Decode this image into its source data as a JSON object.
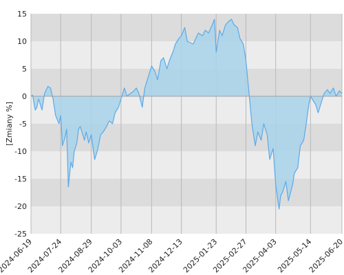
{
  "chart_data": {
    "type": "area",
    "title": "",
    "xlabel": "",
    "ylabel": "[Zmiany %]",
    "ylim": [
      -25,
      15
    ],
    "yticks": [
      15,
      10,
      5,
      0,
      -5,
      -10,
      -15,
      -20,
      -25
    ],
    "xlim": [
      "2024-06-19",
      "2025-06-20"
    ],
    "xticks": [
      "2024-06-19",
      "2024-07-24",
      "2024-08-29",
      "2024-10-03",
      "2024-11-08",
      "2024-12-13",
      "2025-01-23",
      "2025-02-27",
      "2025-04-03",
      "2025-05-14",
      "2025-06-20"
    ],
    "grid": true,
    "legend": "none",
    "colors": {
      "line": "#5ba9e8",
      "fill": "#a8d4ea",
      "band_dark": "#dcdcdc",
      "band_light": "#ececec",
      "grid": "#b8b8b8",
      "zero": "#9aa0a6"
    },
    "series": [
      {
        "x": [
          "2024-06-19",
          "2024-06-21",
          "2024-06-24",
          "2024-06-26",
          "2024-06-28",
          "2024-07-02",
          "2024-07-05",
          "2024-07-09",
          "2024-07-12",
          "2024-07-15",
          "2024-07-18",
          "2024-07-22",
          "2024-07-24",
          "2024-07-26",
          "2024-07-29",
          "2024-07-31",
          "2024-08-02",
          "2024-08-05",
          "2024-08-07",
          "2024-08-09",
          "2024-08-12",
          "2024-08-14",
          "2024-08-16",
          "2024-08-19",
          "2024-08-21",
          "2024-08-23",
          "2024-08-26",
          "2024-08-29",
          "2024-09-02",
          "2024-09-05",
          "2024-09-09",
          "2024-09-12",
          "2024-09-16",
          "2024-09-19",
          "2024-09-23",
          "2024-09-26",
          "2024-09-30",
          "2024-10-03",
          "2024-10-07",
          "2024-10-10",
          "2024-10-14",
          "2024-10-17",
          "2024-10-21",
          "2024-10-24",
          "2024-10-28",
          "2024-10-31",
          "2024-11-04",
          "2024-11-08",
          "2024-11-12",
          "2024-11-15",
          "2024-11-19",
          "2024-11-22",
          "2024-11-26",
          "2024-11-29",
          "2024-12-03",
          "2024-12-06",
          "2024-12-10",
          "2024-12-13",
          "2024-12-17",
          "2024-12-20",
          "2024-12-27",
          "2025-01-02",
          "2025-01-07",
          "2025-01-10",
          "2025-01-14",
          "2025-01-17",
          "2025-01-21",
          "2025-01-23",
          "2025-01-27",
          "2025-01-30",
          "2025-02-03",
          "2025-02-06",
          "2025-02-10",
          "2025-02-13",
          "2025-02-17",
          "2025-02-20",
          "2025-02-24",
          "2025-02-27",
          "2025-03-03",
          "2025-03-06",
          "2025-03-10",
          "2025-03-13",
          "2025-03-17",
          "2025-03-20",
          "2025-03-24",
          "2025-03-27",
          "2025-03-31",
          "2025-04-03",
          "2025-04-07",
          "2025-04-09",
          "2025-04-11",
          "2025-04-15",
          "2025-04-18",
          "2025-04-23",
          "2025-04-25",
          "2025-04-29",
          "2025-05-02",
          "2025-05-06",
          "2025-05-09",
          "2025-05-12",
          "2025-05-14",
          "2025-05-16",
          "2025-05-20",
          "2025-05-23",
          "2025-05-27",
          "2025-05-30",
          "2025-06-03",
          "2025-06-06",
          "2025-06-10",
          "2025-06-13",
          "2025-06-17",
          "2025-06-20"
        ],
        "y": [
          0.0,
          0.2,
          -2.5,
          -2.0,
          -0.5,
          -2.5,
          0.5,
          1.8,
          1.5,
          -0.5,
          -3.5,
          -5.0,
          -3.5,
          -9.0,
          -7.5,
          -6.0,
          -16.5,
          -12.0,
          -13.0,
          -10.0,
          -8.5,
          -6.0,
          -5.5,
          -7.0,
          -8.0,
          -6.5,
          -8.5,
          -7.0,
          -11.5,
          -10.0,
          -7.0,
          -6.5,
          -5.5,
          -4.5,
          -5.0,
          -3.0,
          -2.0,
          -0.5,
          1.5,
          0.0,
          0.5,
          0.8,
          1.5,
          0.5,
          -2.0,
          1.5,
          3.5,
          5.5,
          4.5,
          3.0,
          6.5,
          7.0,
          5.0,
          6.5,
          8.0,
          9.5,
          10.5,
          11.0,
          12.5,
          10.0,
          9.5,
          11.5,
          11.0,
          12.0,
          11.5,
          12.5,
          14.0,
          8.0,
          12.0,
          11.0,
          13.0,
          13.5,
          14.0,
          13.0,
          12.5,
          10.5,
          9.5,
          6.5,
          0.0,
          -5.0,
          -9.0,
          -6.5,
          -8.0,
          -5.0,
          -7.0,
          -11.5,
          -9.5,
          -16.0,
          -20.5,
          -18.0,
          -17.5,
          -15.5,
          -19.0,
          -16.0,
          -14.0,
          -13.0,
          -9.0,
          -8.0,
          -5.0,
          -1.5,
          0.0,
          -0.5,
          -1.5,
          -3.0,
          -1.0,
          0.5,
          1.2,
          0.5,
          1.5,
          0.0,
          1.0,
          0.5
        ]
      }
    ]
  }
}
